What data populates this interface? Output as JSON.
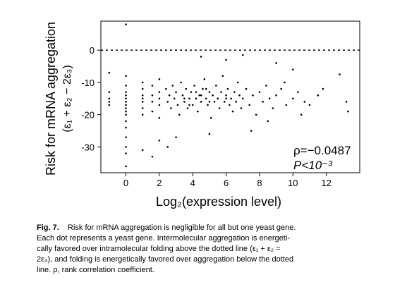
{
  "chart_data": {
    "type": "scatter",
    "x_label": "Log₂(expression level)",
    "y_label": "Risk for mRNA aggregation",
    "y_label_2": "(ε₁ + ε₂ − 2ε₃)",
    "annotations": [
      "ρ=−0.0487",
      "P<10⁻³"
    ],
    "reference_line": 0,
    "color": "#000000",
    "xlim": [
      -1.5,
      14
    ],
    "ylim": [
      -38,
      9
    ],
    "xticks": [
      0,
      2,
      4,
      6,
      8,
      10,
      12
    ],
    "yticks": [
      -30,
      -20,
      -10,
      0
    ],
    "x": [
      -1,
      -1,
      -1,
      -1,
      -1,
      0,
      0,
      0,
      0,
      0,
      0,
      0,
      0,
      0,
      0,
      0,
      0,
      0,
      0,
      0,
      0,
      0,
      1,
      1,
      1,
      1,
      1,
      1,
      1,
      1,
      1.58,
      1.58,
      1.58,
      1.58,
      1.58,
      2,
      2,
      2,
      2,
      2,
      2,
      2.4,
      2.5,
      2.6,
      2.7,
      2.8,
      2.9,
      3.0,
      3.1,
      3.2,
      3.3,
      3.4,
      3.5,
      3.6,
      3.7,
      3.8,
      3.9,
      4.0,
      4.1,
      4.2,
      4.3,
      4.4,
      4.5,
      4.6,
      4.7,
      4.8,
      4.9,
      5.0,
      5.1,
      5.2,
      5.3,
      5.4,
      5.5,
      5.6,
      5.7,
      5.8,
      5.9,
      6.0,
      6.1,
      6.2,
      6.3,
      6.4,
      6.5,
      6.6,
      6.7,
      6.8,
      6.9,
      7.0,
      7.2,
      7.4,
      7.6,
      7.8,
      8.0,
      8.2,
      8.4,
      8.6,
      8.8,
      9.0,
      9.3,
      9.6,
      10.0,
      10.3,
      10.7,
      3.5,
      4.5,
      5.5,
      4.2,
      5.0,
      6.0,
      3.8,
      4.8,
      4.5,
      6,
      7,
      9,
      10,
      12.8,
      13.2,
      13.3,
      11.5,
      11,
      10.5,
      8.5,
      7.5,
      5,
      3,
      2.5,
      9.5,
      11.8
    ],
    "y": [
      -13,
      -15,
      -16,
      -17,
      -7,
      8,
      -8,
      -11,
      -13,
      -14,
      -15,
      -16,
      -17,
      -18,
      -19,
      -20,
      -22,
      -24,
      -27,
      -30,
      -32,
      -36,
      -10,
      -12,
      -14,
      -15,
      -16,
      -18,
      -20,
      -31,
      -11,
      -14,
      -16,
      -19,
      -33,
      -9,
      -13,
      -15,
      -17,
      -21,
      -28,
      -12,
      -16,
      -14,
      -18,
      -11,
      -15,
      -13,
      -17,
      -20,
      -10,
      -14,
      -16,
      -12,
      -18,
      -15,
      -13,
      -17,
      -11,
      -15,
      -19,
      -14,
      -16,
      -12,
      -9,
      -15,
      -17,
      -13,
      -21,
      -14,
      -16,
      -11,
      -15,
      -18,
      -13,
      -8,
      -16,
      -14,
      -12,
      -17,
      -15,
      -19,
      -13,
      -16,
      -10,
      -14,
      -18,
      -15,
      -12,
      -17,
      -14,
      -20,
      -13,
      -16,
      -11,
      -15,
      -18,
      -14,
      -12,
      -17,
      -15,
      -13,
      -16,
      -15,
      -14,
      -15,
      -13,
      -16,
      -15,
      -17,
      -12,
      -2,
      -3,
      -1.5,
      -4,
      -6,
      -7.5,
      -16,
      -19,
      -14,
      -17,
      -20,
      -22,
      -25,
      -26,
      -27,
      -30,
      -10,
      -12
    ]
  },
  "caption": {
    "label": "Fig. 7.",
    "lines": [
      "Risk for mRNA aggregation is negligible for all but one yeast gene.",
      "Each dot represents a yeast gene. Intermolecular aggregation is energeti-",
      "cally favored over intramolecular folding above the dotted line (ε₁ + ε₂ =",
      "2ε₃), and folding is energetically favored over aggregation below the dotted",
      "line. ρ, rank correlation coefficient."
    ]
  }
}
